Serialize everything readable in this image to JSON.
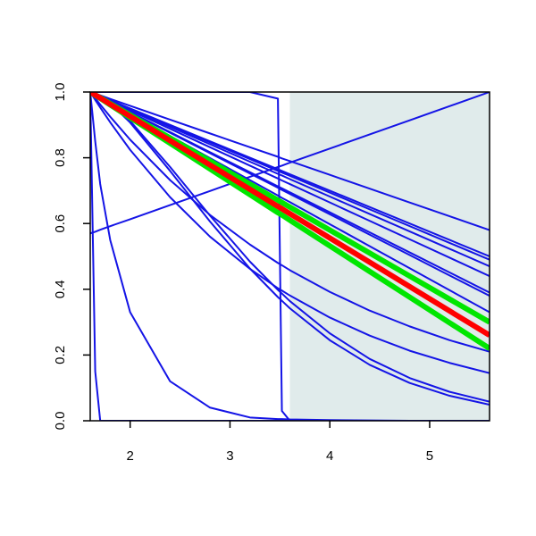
{
  "chart_data": {
    "type": "line",
    "x": [
      1.6,
      1.65,
      1.7,
      1.8,
      2.0,
      2.4,
      2.8,
      3.2,
      3.48,
      3.52,
      3.6,
      4.0,
      4.4,
      4.8,
      5.2,
      5.6
    ],
    "xlim": [
      1.6,
      5.6
    ],
    "ylim": [
      0,
      1
    ],
    "xticks": [
      2,
      3,
      4,
      5
    ],
    "yticks": [
      {
        "value": 0,
        "label": "0.0"
      },
      {
        "value": 0.2,
        "label": "0.2"
      },
      {
        "value": 0.4,
        "label": "0.4"
      },
      {
        "value": 0.6,
        "label": "0.6"
      },
      {
        "value": 0.8,
        "label": "0.8"
      },
      {
        "value": 1,
        "label": "1.0"
      }
    ],
    "shaded_region": {
      "x": [
        3.6,
        5.6
      ],
      "color": "#e0ebeb"
    },
    "series": [
      {
        "color": "#1414e6",
        "width": 2,
        "values": [
          1,
          1,
          1,
          1,
          1,
          1,
          1,
          1,
          0.98,
          0.03,
          0,
          0,
          0,
          0,
          0,
          0
        ]
      },
      {
        "color": "#1414e6",
        "width": 2,
        "values": [
          1,
          0.15,
          0,
          0,
          0,
          0,
          0,
          0,
          0,
          0,
          0,
          0,
          0,
          0,
          0,
          0
        ]
      },
      {
        "color": "#1414e6",
        "width": 2,
        "values": [
          1,
          0.85,
          0.72,
          0.55,
          0.33,
          0.12,
          0.04,
          0.01,
          0.005,
          0.005,
          0.004,
          0.002,
          0.001,
          0,
          0,
          0
        ]
      },
      {
        "color": "#1414e6",
        "width": 2,
        "values": [
          0.57,
          0.575,
          0.581,
          0.592,
          0.613,
          0.656,
          0.699,
          0.742,
          0.772,
          0.776,
          0.785,
          0.828,
          0.871,
          0.914,
          0.957,
          1.0
        ]
      },
      {
        "color": "#1414e6",
        "width": 2,
        "values": [
          1,
          0.996,
          0.988,
          0.966,
          0.907,
          0.76,
          0.606,
          0.463,
          0.376,
          0.365,
          0.342,
          0.245,
          0.17,
          0.115,
          0.076,
          0.049
        ]
      },
      {
        "color": "#1414e6",
        "width": 2,
        "values": [
          1,
          0.996,
          0.989,
          0.968,
          0.912,
          0.772,
          0.624,
          0.484,
          0.398,
          0.387,
          0.364,
          0.266,
          0.188,
          0.13,
          0.088,
          0.058
        ]
      },
      {
        "color": "#1414e6",
        "width": 2,
        "values": [
          1,
          0.981,
          0.962,
          0.925,
          0.855,
          0.732,
          0.626,
          0.536,
          0.48,
          0.473,
          0.458,
          0.392,
          0.335,
          0.287,
          0.245,
          0.21
        ]
      },
      {
        "color": "#1414e6",
        "width": 2,
        "values": [
          1,
          0.976,
          0.953,
          0.908,
          0.824,
          0.68,
          0.56,
          0.462,
          0.403,
          0.396,
          0.381,
          0.314,
          0.259,
          0.213,
          0.176,
          0.145
        ]
      },
      {
        "color": "#1414e6",
        "width": 2,
        "values": [
          1,
          0.995,
          0.99,
          0.979,
          0.958,
          0.916,
          0.874,
          0.832,
          0.803,
          0.798,
          0.79,
          0.748,
          0.706,
          0.664,
          0.622,
          0.58
        ]
      },
      {
        "color": "#1414e6",
        "width": 2,
        "values": [
          1,
          0.994,
          0.988,
          0.975,
          0.95,
          0.9,
          0.85,
          0.8,
          0.765,
          0.76,
          0.75,
          0.7,
          0.65,
          0.6,
          0.55,
          0.5
        ]
      },
      {
        "color": "#1414e6",
        "width": 2,
        "values": [
          1,
          0.994,
          0.987,
          0.975,
          0.949,
          0.898,
          0.847,
          0.796,
          0.76,
          0.755,
          0.745,
          0.694,
          0.643,
          0.592,
          0.541,
          0.49
        ]
      },
      {
        "color": "#1414e6",
        "width": 2,
        "values": [
          1,
          0.993,
          0.987,
          0.974,
          0.947,
          0.894,
          0.841,
          0.788,
          0.751,
          0.746,
          0.735,
          0.682,
          0.629,
          0.576,
          0.523,
          0.47
        ]
      },
      {
        "color": "#1414e6",
        "width": 2,
        "values": [
          1,
          0.993,
          0.986,
          0.972,
          0.944,
          0.888,
          0.832,
          0.776,
          0.737,
          0.731,
          0.72,
          0.664,
          0.608,
          0.552,
          0.496,
          0.44
        ]
      },
      {
        "color": "#1414e6",
        "width": 2,
        "values": [
          1,
          0.992,
          0.985,
          0.97,
          0.939,
          0.878,
          0.817,
          0.756,
          0.713,
          0.707,
          0.695,
          0.634,
          0.573,
          0.512,
          0.451,
          0.39
        ]
      },
      {
        "color": "#1414e6",
        "width": 2,
        "values": [
          1,
          0.992,
          0.985,
          0.969,
          0.938,
          0.876,
          0.814,
          0.752,
          0.709,
          0.702,
          0.69,
          0.628,
          0.566,
          0.504,
          0.442,
          0.38
        ]
      },
      {
        "color": "#1414e6",
        "width": 2,
        "values": [
          1,
          0.992,
          0.983,
          0.967,
          0.933,
          0.866,
          0.799,
          0.732,
          0.685,
          0.678,
          0.665,
          0.598,
          0.531,
          0.464,
          0.397,
          0.33
        ]
      },
      {
        "color": "#00e600",
        "width": 6,
        "values": [
          1,
          0.991,
          0.983,
          0.965,
          0.93,
          0.86,
          0.79,
          0.72,
          0.671,
          0.664,
          0.65,
          0.58,
          0.51,
          0.44,
          0.37,
          0.3
        ]
      },
      {
        "color": "#00e600",
        "width": 6,
        "values": [
          1,
          0.99,
          0.981,
          0.961,
          0.922,
          0.844,
          0.766,
          0.688,
          0.633,
          0.626,
          0.61,
          0.532,
          0.454,
          0.376,
          0.298,
          0.22
        ]
      },
      {
        "color": "#ff0000",
        "width": 6,
        "values": [
          1,
          0.991,
          0.982,
          0.963,
          0.926,
          0.852,
          0.778,
          0.704,
          0.652,
          0.645,
          0.63,
          0.556,
          0.482,
          0.408,
          0.334,
          0.26
        ]
      }
    ]
  }
}
